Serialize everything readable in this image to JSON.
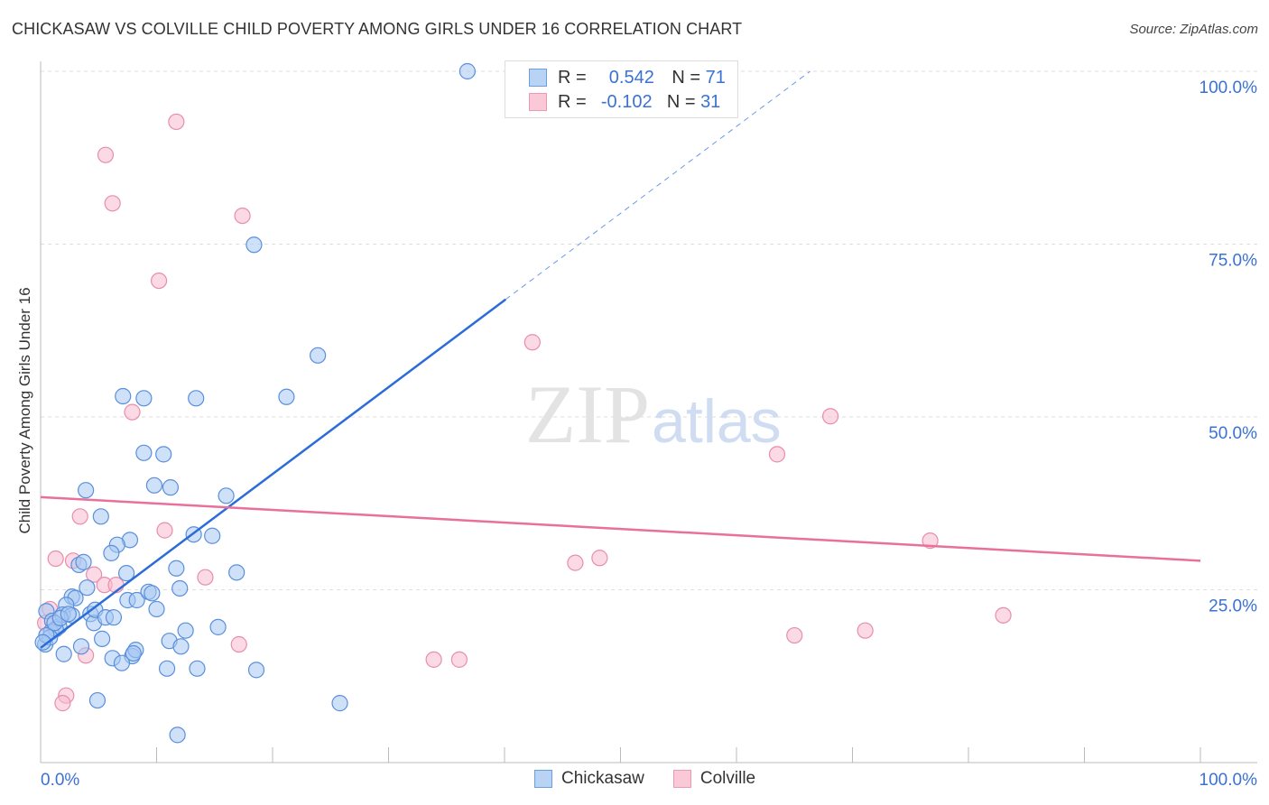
{
  "header": {
    "title": "CHICKASAW VS COLVILLE CHILD POVERTY AMONG GIRLS UNDER 16 CORRELATION CHART",
    "source": "Source: ZipAtlas.com"
  },
  "watermark": {
    "zip": "ZIP",
    "atlas": "atlas"
  },
  "colors": {
    "blue_fill": "#a8c8f2",
    "blue_stroke": "#5a8fdc",
    "blue_line": "#2a6dd8",
    "pink_fill": "#f8bcd0",
    "pink_stroke": "#e88eaa",
    "pink_line": "#e8709a",
    "tick_label": "#3a72d3"
  },
  "legend": {
    "rows": [
      {
        "r_label": "R =",
        "r": "0.542",
        "n_label": "N =",
        "n": "71"
      },
      {
        "r_label": "R =",
        "r": "-0.102",
        "n_label": "N =",
        "n": "31"
      }
    ]
  },
  "chart_data": {
    "type": "scatter",
    "title": "CHICKASAW VS COLVILLE CHILD POVERTY AMONG GIRLS UNDER 16 CORRELATION CHART",
    "xlabel": "",
    "ylabel": "Child Poverty Among Girls Under 16",
    "xlim": [
      0,
      100
    ],
    "ylim": [
      0,
      100
    ],
    "x_tick_labels": [
      "0.0%",
      "100.0%"
    ],
    "y_ticks": [
      25,
      50,
      75,
      100
    ],
    "y_tick_labels": [
      "25.0%",
      "50.0%",
      "75.0%",
      "100.0%"
    ],
    "grid": true,
    "legend_placement": "top-center",
    "series": [
      {
        "name": "Chickasaw",
        "r": 0.542,
        "n": 71,
        "trend": {
          "y_at_0": 16.6,
          "slope": 1.257,
          "solid_to_x": 40.1
        },
        "points": [
          [
            36.8,
            100
          ],
          [
            18.4,
            74.9
          ],
          [
            23.9,
            58.9
          ],
          [
            7.1,
            53.0
          ],
          [
            8.9,
            52.7
          ],
          [
            13.4,
            52.7
          ],
          [
            21.2,
            52.9
          ],
          [
            8.9,
            44.8
          ],
          [
            10.6,
            44.6
          ],
          [
            3.9,
            39.4
          ],
          [
            9.8,
            40.1
          ],
          [
            11.2,
            39.8
          ],
          [
            16.0,
            38.6
          ],
          [
            5.2,
            35.6
          ],
          [
            7.7,
            32.2
          ],
          [
            6.6,
            31.5
          ],
          [
            6.1,
            30.3
          ],
          [
            13.2,
            33.0
          ],
          [
            14.8,
            32.8
          ],
          [
            3.3,
            28.6
          ],
          [
            3.7,
            29.0
          ],
          [
            7.4,
            27.4
          ],
          [
            11.7,
            28.1
          ],
          [
            16.9,
            27.5
          ],
          [
            4.0,
            25.3
          ],
          [
            2.7,
            24.0
          ],
          [
            3.0,
            23.8
          ],
          [
            7.5,
            23.5
          ],
          [
            8.3,
            23.5
          ],
          [
            9.3,
            24.7
          ],
          [
            9.6,
            24.5
          ],
          [
            12.0,
            25.2
          ],
          [
            10.0,
            22.2
          ],
          [
            0.5,
            21.9
          ],
          [
            2.2,
            22.8
          ],
          [
            1.0,
            20.5
          ],
          [
            1.6,
            19.7
          ],
          [
            1.9,
            21.4
          ],
          [
            2.7,
            21.3
          ],
          [
            4.3,
            21.5
          ],
          [
            4.6,
            20.2
          ],
          [
            4.7,
            22.1
          ],
          [
            5.6,
            21.0
          ],
          [
            6.3,
            21.0
          ],
          [
            0.9,
            18.9
          ],
          [
            1.3,
            19.3
          ],
          [
            0.4,
            17.1
          ],
          [
            0.8,
            18.1
          ],
          [
            0.5,
            18.4
          ],
          [
            3.5,
            16.8
          ],
          [
            5.3,
            17.9
          ],
          [
            11.1,
            17.6
          ],
          [
            12.1,
            16.8
          ],
          [
            12.5,
            19.1
          ],
          [
            15.3,
            19.6
          ],
          [
            2.0,
            15.7
          ],
          [
            6.2,
            15.1
          ],
          [
            7.9,
            15.4
          ],
          [
            8.2,
            16.3
          ],
          [
            8.0,
            15.8
          ],
          [
            7.0,
            14.4
          ],
          [
            10.9,
            13.6
          ],
          [
            13.5,
            13.6
          ],
          [
            18.6,
            13.4
          ],
          [
            4.9,
            9.0
          ],
          [
            25.8,
            8.6
          ],
          [
            11.8,
            4.0
          ],
          [
            0.2,
            17.4
          ],
          [
            1.2,
            20.2
          ],
          [
            1.7,
            20.9
          ],
          [
            2.4,
            21.5
          ]
        ]
      },
      {
        "name": "Colville",
        "r": -0.102,
        "n": 31,
        "trend": {
          "y_at_0": 38.4,
          "slope": -0.092
        },
        "points": [
          [
            11.7,
            92.7
          ],
          [
            5.6,
            87.9
          ],
          [
            6.2,
            80.9
          ],
          [
            17.4,
            79.1
          ],
          [
            10.2,
            69.7
          ],
          [
            42.4,
            60.8
          ],
          [
            7.9,
            50.7
          ],
          [
            68.1,
            50.1
          ],
          [
            63.5,
            44.6
          ],
          [
            3.4,
            35.6
          ],
          [
            10.7,
            33.6
          ],
          [
            1.3,
            29.5
          ],
          [
            2.8,
            29.2
          ],
          [
            4.6,
            27.2
          ],
          [
            5.5,
            25.7
          ],
          [
            6.5,
            25.7
          ],
          [
            14.2,
            26.8
          ],
          [
            46.1,
            28.9
          ],
          [
            48.2,
            29.6
          ],
          [
            76.7,
            32.1
          ],
          [
            83.0,
            21.3
          ],
          [
            0.8,
            22.2
          ],
          [
            71.1,
            19.1
          ],
          [
            65.0,
            18.4
          ],
          [
            17.1,
            17.1
          ],
          [
            3.9,
            15.5
          ],
          [
            33.9,
            14.9
          ],
          [
            36.1,
            14.9
          ],
          [
            2.2,
            9.7
          ],
          [
            1.9,
            8.6
          ],
          [
            0.4,
            20.2
          ]
        ]
      }
    ]
  }
}
